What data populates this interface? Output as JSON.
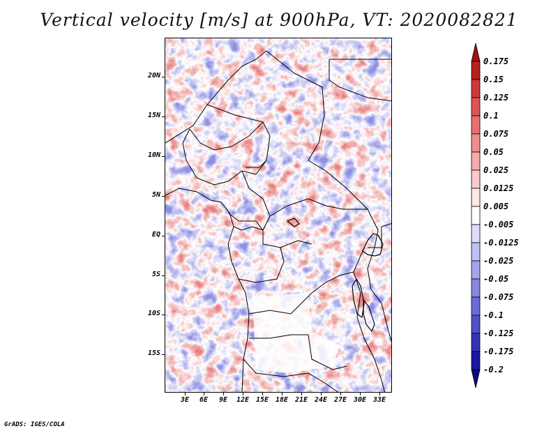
{
  "title": "Vertical velocity [m/s] at 900hPa, VT: 2020082821",
  "map": {
    "variable": "Vertical velocity",
    "units": "m/s",
    "level": "900hPa",
    "valid_time": "2020082821",
    "lat_labels": [
      "20N",
      "15N",
      "10N",
      "5N",
      "EQ",
      "5S",
      "10S",
      "15S"
    ],
    "lon_labels": [
      "3E",
      "6E",
      "9E",
      "12E",
      "15E",
      "18E",
      "21E",
      "24E",
      "27E",
      "30E",
      "33E"
    ]
  },
  "colorbar": {
    "labels": [
      "0.175",
      "0.15",
      "0.125",
      "0.1",
      "0.075",
      "0.05",
      "0.025",
      "0.0125",
      "0.005",
      "-0.005",
      "-0.0125",
      "-0.025",
      "-0.05",
      "-0.075",
      "-0.1",
      "-0.125",
      "-0.175",
      "-0.2"
    ],
    "colors": [
      "#a01010",
      "#b82020",
      "#cc3a3a",
      "#dc5555",
      "#e67070",
      "#ee8e8e",
      "#f4acac",
      "#f8caca",
      "#fce6e6",
      "#ffffff",
      "#dcdcfa",
      "#c0c0f2",
      "#a4a4ea",
      "#8888e0",
      "#6c6cd6",
      "#5050c8",
      "#3434b6",
      "#1a1aa0",
      "#0a0a80"
    ]
  },
  "credit": "GrADS: IGES/COLA"
}
